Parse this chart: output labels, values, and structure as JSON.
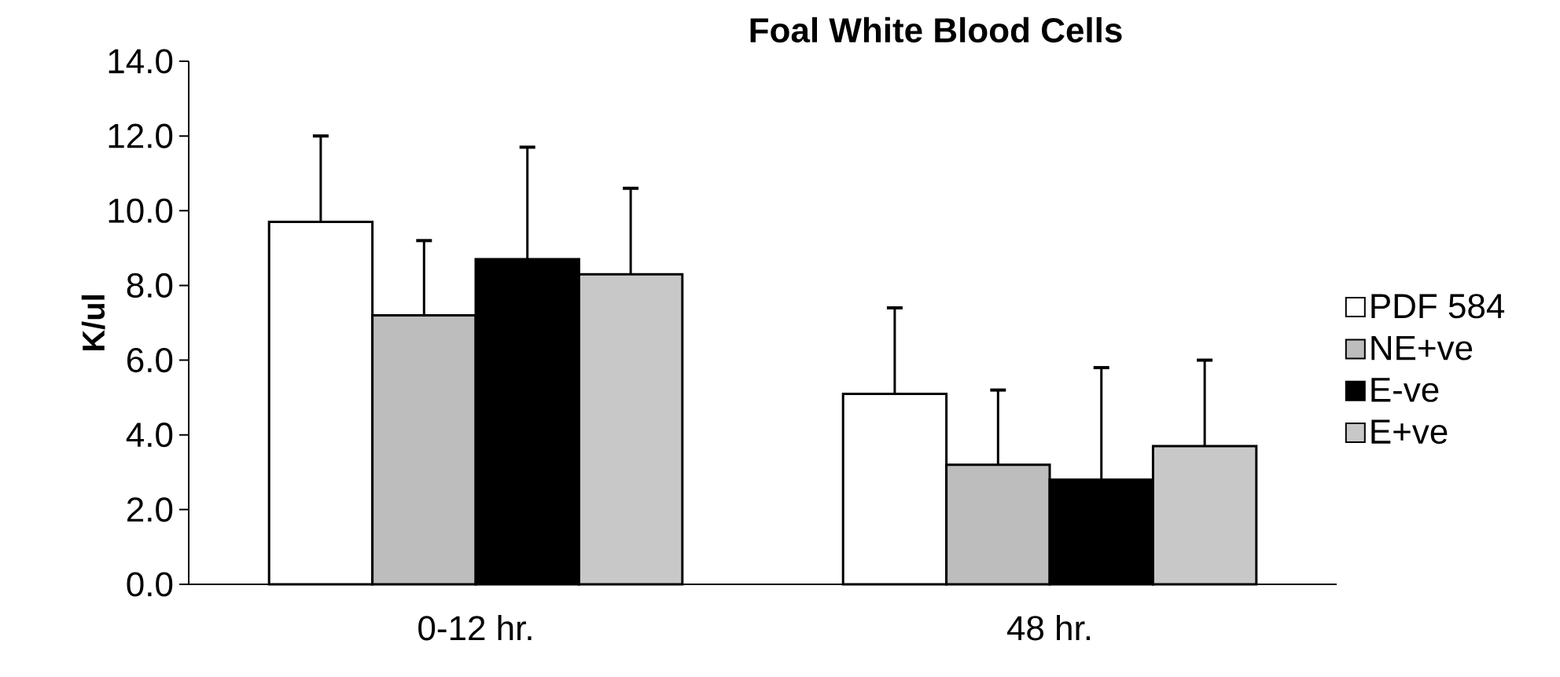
{
  "chart_data": {
    "type": "bar",
    "title": "Foal White Blood Cells",
    "ylabel": "K/ul",
    "categories": [
      "0-12 hr.",
      "48 hr."
    ],
    "series": [
      {
        "name": "PDF 584",
        "color": "#ffffff",
        "values": [
          9.7,
          5.1
        ],
        "errors": [
          2.3,
          2.3
        ]
      },
      {
        "name": "NE+ve",
        "color": "#bdbdbd",
        "values": [
          7.2,
          3.2
        ],
        "errors": [
          2.0,
          2.0
        ]
      },
      {
        "name": "E-ve",
        "color": "#000000",
        "values": [
          8.7,
          2.8
        ],
        "errors": [
          3.0,
          3.0
        ]
      },
      {
        "name": "E+ve",
        "color": "#c8c8c8",
        "values": [
          8.3,
          3.7
        ],
        "errors": [
          2.3,
          2.3
        ]
      }
    ],
    "ylim": [
      0,
      14
    ],
    "yticks": [
      {
        "value": 0,
        "label": "0.0"
      },
      {
        "value": 2,
        "label": "2.0"
      },
      {
        "value": 4,
        "label": "4.0"
      },
      {
        "value": 6,
        "label": "6.0"
      },
      {
        "value": 8,
        "label": "8.0"
      },
      {
        "value": 10,
        "label": "10.0"
      },
      {
        "value": 12,
        "label": "12.0"
      },
      {
        "value": 14,
        "label": "14.0"
      }
    ],
    "legend": "right",
    "grid": false
  }
}
